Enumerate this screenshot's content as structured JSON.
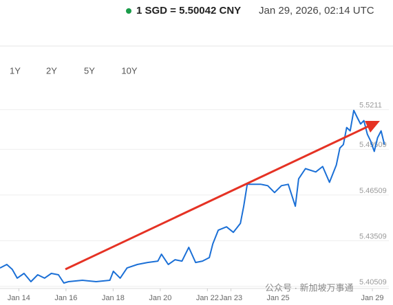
{
  "header": {
    "pair": "1 SGD = 5.50042 CNY",
    "timestamp": "Jan 29, 2026, 02:14 UTC"
  },
  "range_buttons": [
    "1Y",
    "2Y",
    "5Y",
    "10Y"
  ],
  "watermark": "公众号 · 新加坡万事通",
  "chart_data": {
    "type": "line",
    "color": "#1a6fd6",
    "grid": true,
    "x": [
      13.2,
      13.49,
      13.72,
      13.93,
      14.22,
      14.51,
      14.8,
      15.09,
      15.38,
      15.68,
      15.91,
      16.11,
      16.7,
      17.28,
      17.86,
      18.01,
      18.3,
      18.59,
      19.03,
      19.46,
      19.9,
      20.05,
      20.34,
      20.63,
      20.92,
      21.21,
      21.5,
      21.79,
      22.08,
      22.23,
      22.46,
      22.81,
      23.1,
      23.4,
      23.54,
      23.69,
      24.27,
      24.56,
      24.85,
      25.14,
      25.43,
      25.73,
      25.87,
      26.16,
      26.6,
      26.89,
      27.18,
      27.47,
      27.62,
      27.77,
      27.91,
      28.06,
      28.21,
      28.35,
      28.5,
      28.64,
      28.79,
      28.93,
      29.08,
      29.22,
      29.37,
      29.51
    ],
    "values": [
      5.4145,
      5.4168,
      5.4136,
      5.4078,
      5.4109,
      5.4055,
      5.41,
      5.4078,
      5.4109,
      5.41,
      5.4046,
      5.4055,
      5.4064,
      5.4055,
      5.4064,
      5.4123,
      5.4078,
      5.4145,
      5.4168,
      5.4181,
      5.419,
      5.4235,
      5.4168,
      5.4199,
      5.419,
      5.428,
      5.4181,
      5.419,
      5.4213,
      5.4303,
      5.4393,
      5.4415,
      5.4379,
      5.4438,
      5.455,
      5.4694,
      5.4694,
      5.4685,
      5.464,
      5.4685,
      5.4694,
      5.455,
      5.473,
      5.4797,
      5.4775,
      5.4811,
      5.4707,
      5.482,
      5.4932,
      5.4955,
      5.5067,
      5.5045,
      5.5179,
      5.5135,
      5.509,
      5.5112,
      5.5022,
      5.4977,
      5.491,
      5.5,
      5.5045,
      5.4955
    ],
    "xlim": [
      13.2,
      29.7
    ],
    "xticks": [
      {
        "value": 14,
        "label": "Jan 14"
      },
      {
        "value": 16,
        "label": "Jan 16"
      },
      {
        "value": 18,
        "label": "Jan 18"
      },
      {
        "value": 20,
        "label": "Jan 20"
      },
      {
        "value": 22,
        "label": "Jan 22"
      },
      {
        "value": 23,
        "label": "Jan 23"
      },
      {
        "value": 25,
        "label": "Jan 25"
      },
      {
        "value": 29,
        "label": "Jan 29"
      }
    ],
    "ylim": [
      5.401,
      5.525
    ],
    "yticks": [
      5.40509,
      5.43509,
      5.46509,
      5.49509,
      5.5211
    ]
  }
}
